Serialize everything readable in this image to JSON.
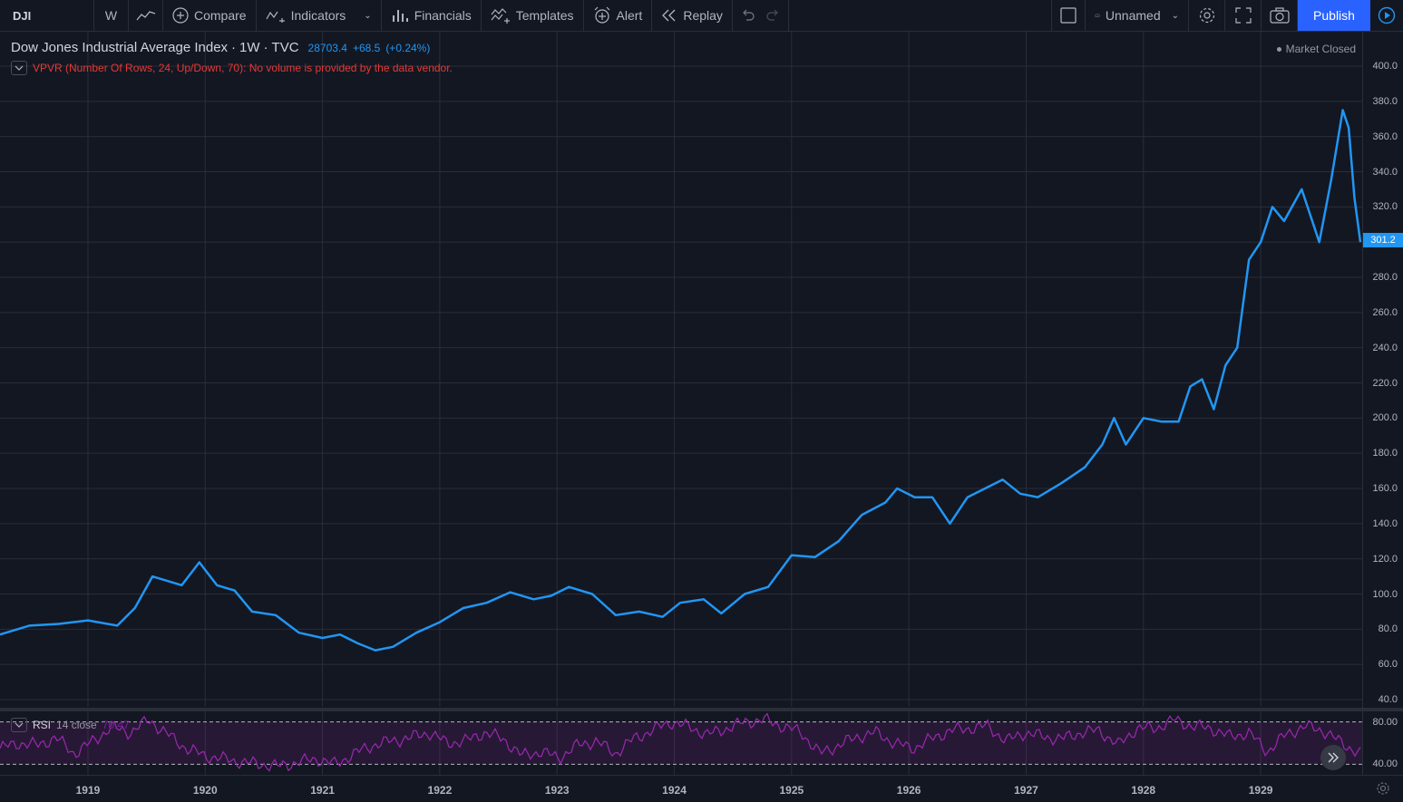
{
  "toolbar": {
    "symbol": "DJI",
    "interval": "W",
    "compare_label": "Compare",
    "indicators_label": "Indicators",
    "financials_label": "Financials",
    "templates_label": "Templates",
    "alert_label": "Alert",
    "replay_label": "Replay",
    "layout_name": "Unnamed",
    "publish_label": "Publish"
  },
  "legend": {
    "title": "Dow Jones Industrial Average Index",
    "interval": "1W",
    "exchange": "TVC",
    "last": "28703.4",
    "change": "+68.5",
    "change_pct": "(+0.24%)"
  },
  "vpvr_message": "VPVR (Number Of Rows, 24, Up/Down, 70): No volume is provided by the data vendor.",
  "market_status": "Market Closed",
  "rsi": {
    "name": "RSI",
    "params": "14 close",
    "value": "70.47",
    "levels": [
      "80.00",
      "40.00"
    ]
  },
  "price_scale": [
    "400.0",
    "380.0",
    "360.0",
    "340.0",
    "320.0",
    "300.0",
    "280.0",
    "260.0",
    "240.0",
    "220.0",
    "200.0",
    "180.0",
    "160.0",
    "140.0",
    "120.0",
    "100.0",
    "80.0",
    "60.0",
    "40.0"
  ],
  "last_price_label": "301.2",
  "time_axis": [
    "1919",
    "1920",
    "1921",
    "1922",
    "1923",
    "1924",
    "1925",
    "1926",
    "1927",
    "1928",
    "1929"
  ],
  "colors": {
    "line": "#2196f3",
    "rsi": "#9c27b0",
    "background": "#131722",
    "grid": "#2a2e39",
    "accent": "#2962ff"
  },
  "chart_data": {
    "type": "line",
    "title": "Dow Jones Industrial Average Index",
    "xlabel": "",
    "ylabel": "",
    "xlim": [
      1918.25,
      1929.85
    ],
    "ylim": [
      40,
      400
    ],
    "x": [
      1918.25,
      1918.5,
      1918.75,
      1919.0,
      1919.25,
      1919.4,
      1919.55,
      1919.8,
      1919.95,
      1920.1,
      1920.25,
      1920.4,
      1920.6,
      1920.8,
      1921.0,
      1921.15,
      1921.3,
      1921.45,
      1921.6,
      1921.8,
      1922.0,
      1922.2,
      1922.4,
      1922.6,
      1922.8,
      1922.95,
      1923.1,
      1923.3,
      1923.5,
      1923.7,
      1923.9,
      1924.05,
      1924.25,
      1924.4,
      1924.6,
      1924.8,
      1925.0,
      1925.2,
      1925.4,
      1925.6,
      1925.8,
      1925.9,
      1926.05,
      1926.2,
      1926.35,
      1926.5,
      1926.65,
      1926.8,
      1926.95,
      1927.1,
      1927.3,
      1927.5,
      1927.65,
      1927.75,
      1927.85,
      1928.0,
      1928.15,
      1928.3,
      1928.4,
      1928.5,
      1928.6,
      1928.7,
      1928.8,
      1928.9,
      1929.0,
      1929.1,
      1929.2,
      1929.35,
      1929.5,
      1929.6,
      1929.7,
      1929.75,
      1929.8,
      1929.85
    ],
    "series": [
      {
        "values": [
          77,
          82,
          83,
          85,
          82,
          92,
          110,
          105,
          118,
          105,
          102,
          90,
          88,
          78,
          75,
          77,
          72,
          68,
          70,
          78,
          84,
          92,
          95,
          101,
          97,
          99,
          104,
          100,
          88,
          90,
          87,
          95,
          97,
          89,
          100,
          104,
          122,
          121,
          130,
          145,
          152,
          160,
          155,
          155,
          140,
          155,
          160,
          165,
          157,
          155,
          163,
          172,
          185,
          200,
          185,
          200,
          198,
          198,
          218,
          222,
          205,
          230,
          240,
          290,
          300,
          320,
          312,
          330,
          300,
          335,
          375,
          365,
          325,
          300
        ]
      }
    ]
  },
  "rsi_data": {
    "ylim": [
      30,
      90
    ],
    "values": [
      55,
      60,
      58,
      65,
      50,
      62,
      75,
      70,
      82,
      68,
      55,
      48,
      45,
      42,
      40,
      38,
      42,
      45,
      40,
      50,
      58,
      62,
      65,
      70,
      60,
      62,
      70,
      64,
      48,
      52,
      46,
      58,
      62,
      50,
      64,
      72,
      80,
      75,
      68,
      74,
      80,
      82,
      76,
      70,
      50,
      58,
      66,
      70,
      60,
      55,
      64,
      72,
      74,
      76,
      62,
      70,
      66,
      64,
      70,
      72,
      58,
      74,
      74,
      82,
      76,
      74,
      66,
      70,
      52,
      68,
      76,
      72,
      60,
      50
    ]
  }
}
